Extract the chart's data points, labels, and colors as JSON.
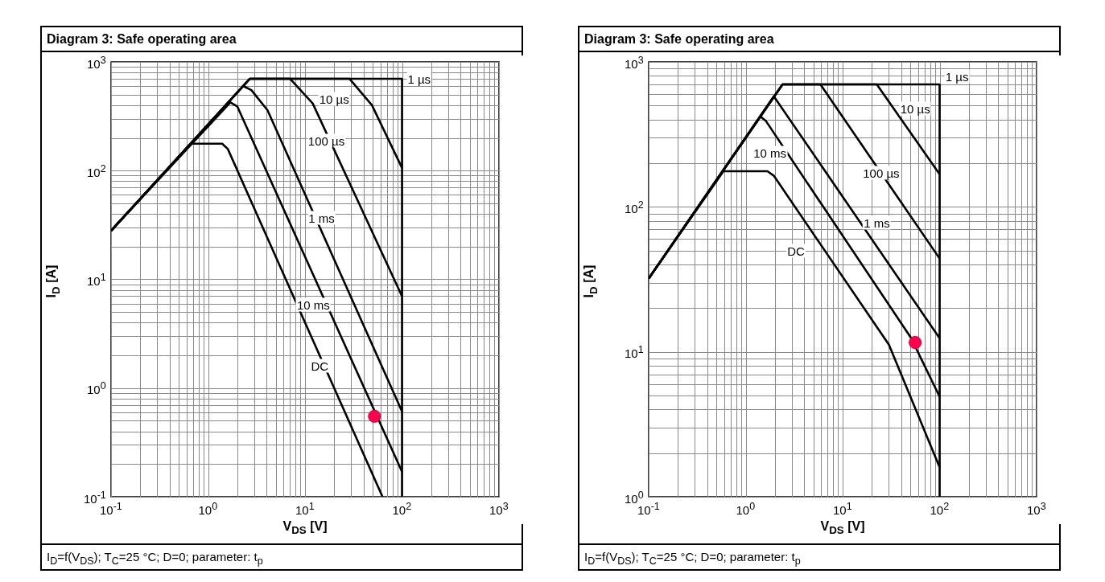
{
  "chart_data": [
    {
      "type": "line",
      "title": "Diagram 3: Safe operating area",
      "xlabel": "V$_{DS}$ [V]",
      "ylabel": "I$_{D}$ [A]",
      "log": "xy",
      "grid": true,
      "xlim": [
        0.1,
        1000
      ],
      "ylim": [
        0.1,
        1000
      ],
      "xticks": [
        {
          "value": 0.1,
          "label": "10$^{-1}$"
        },
        {
          "value": 1,
          "label": "10$^{0}$"
        },
        {
          "value": 10,
          "label": "10$^{1}$"
        },
        {
          "value": 100,
          "label": "10$^{2}$"
        },
        {
          "value": 1000,
          "label": "10$^{3}$"
        }
      ],
      "yticks": [
        {
          "value": 0.1,
          "label": "10$^{-1}$"
        },
        {
          "value": 1,
          "label": "10$^{0}$"
        },
        {
          "value": 10,
          "label": "10$^{1}$"
        },
        {
          "value": 100,
          "label": "10$^{2}$"
        },
        {
          "value": 1000,
          "label": "10$^{3}$"
        }
      ],
      "series": [
        {
          "type": "line",
          "color": "#000000",
          "x": [
            0.1,
            2.7,
            100,
            100
          ],
          "values": [
            28,
            700,
            700,
            0.1
          ]
        },
        {
          "type": "line",
          "color": "#000000",
          "x": [
            0.1,
            2.7,
            28.7,
            49,
            100
          ],
          "values": [
            28,
            700,
            700,
            400,
            106
          ]
        },
        {
          "type": "line",
          "color": "#000000",
          "x": [
            0.1,
            2.7,
            7,
            12,
            100
          ],
          "values": [
            28,
            700,
            700,
            415,
            7
          ]
        },
        {
          "type": "line",
          "color": "#000000",
          "x": [
            0.1,
            2.3,
            2.8,
            4.1,
            100
          ],
          "values": [
            28,
            600,
            550,
            360,
            0.61
          ]
        },
        {
          "type": "line",
          "color": "#000000",
          "x": [
            0.1,
            1.7,
            2,
            100
          ],
          "values": [
            28,
            425,
            390,
            0.17
          ]
        },
        {
          "type": "line",
          "color": "#000000",
          "x": [
            0.1,
            0.67,
            1.4,
            1.6,
            63
          ],
          "values": [
            28,
            177,
            177,
            158,
            0.1
          ]
        },
        {
          "type": "scatter",
          "color": "#ff0050",
          "x": [
            52
          ],
          "values": [
            0.55
          ]
        }
      ],
      "annotations": [
        {
          "text": "1 µs",
          "x": 150,
          "y": 700
        },
        {
          "text": "10 µs",
          "x": 20,
          "y": 454
        },
        {
          "text": "100 µs",
          "x": 16.6,
          "y": 187
        },
        {
          "text": "1 ms",
          "x": 14.8,
          "y": 37
        },
        {
          "text": "10 ms",
          "x": 12.2,
          "y": 5.8
        },
        {
          "text": "DC",
          "x": 14.2,
          "y": 1.6
        },
        "I$_{D}$=f(V$_{DS}$); T$_{C}$=25 °C; D=0; parameter: t$_{p}$"
      ]
    },
    {
      "type": "line",
      "title": "Diagram 3: Safe operating area",
      "xlabel": "V$_{DS}$ [V]",
      "ylabel": "I$_{D}$ [A]",
      "log": "xy",
      "grid": true,
      "xlim": [
        0.1,
        1000
      ],
      "ylim": [
        1,
        1000
      ],
      "xticks": [
        {
          "value": 0.1,
          "label": "10$^{-1}$"
        },
        {
          "value": 1,
          "label": "10$^{0}$"
        },
        {
          "value": 10,
          "label": "10$^{1}$"
        },
        {
          "value": 100,
          "label": "10$^{2}$"
        },
        {
          "value": 1000,
          "label": "10$^{3}$"
        }
      ],
      "yticks": [
        {
          "value": 1,
          "label": "10$^{0}$"
        },
        {
          "value": 10,
          "label": "10$^{1}$"
        },
        {
          "value": 100,
          "label": "10$^{2}$"
        },
        {
          "value": 1000,
          "label": "10$^{3}$"
        }
      ],
      "series": [
        {
          "type": "line",
          "color": "#000000",
          "x": [
            0.1,
            2.4,
            100,
            100
          ],
          "values": [
            32,
            700,
            700,
            1
          ]
        },
        {
          "type": "line",
          "color": "#000000",
          "x": [
            0.1,
            2.4,
            22.5,
            100
          ],
          "values": [
            32,
            700,
            700,
            168
          ]
        },
        {
          "type": "line",
          "color": "#000000",
          "x": [
            0.1,
            2.4,
            5.9,
            100
          ],
          "values": [
            32,
            700,
            700,
            44
          ]
        },
        {
          "type": "line",
          "color": "#000000",
          "x": [
            0.1,
            1.95,
            100
          ],
          "values": [
            32,
            580,
            12.4
          ]
        },
        {
          "type": "line",
          "color": "#000000",
          "x": [
            0.1,
            1.42,
            1.61,
            51,
            100
          ],
          "values": [
            32,
            420,
            393,
            12.4,
            4.9
          ]
        },
        {
          "type": "line",
          "color": "#000000",
          "x": [
            0.1,
            0.59,
            1.68,
            1.95,
            30,
            100
          ],
          "values": [
            32,
            176,
            176,
            164,
            11.2,
            1.6
          ]
        },
        {
          "type": "scatter",
          "color": "#ff0050",
          "x": [
            56
          ],
          "values": [
            11.6
          ]
        }
      ],
      "annotations": [
        {
          "text": "1 µs",
          "x": 151,
          "y": 794
        },
        {
          "text": "10 µs",
          "x": 56,
          "y": 476
        },
        {
          "text": "100 µs",
          "x": 25,
          "y": 172
        },
        {
          "text": "1 ms",
          "x": 22.5,
          "y": 78
        },
        {
          "text": "10 ms",
          "x": 1.78,
          "y": 235
        },
        {
          "text": "DC",
          "x": 3.3,
          "y": 49.5
        },
        "I$_{D}$=f(V$_{DS}$); T$_{C}$=25 °C; D=0; parameter: t$_{p}$"
      ]
    }
  ]
}
